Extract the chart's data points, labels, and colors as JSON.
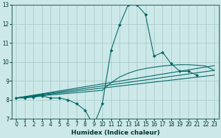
{
  "xlabel": "Humidex (Indice chaleur)",
  "background_color": "#cce8e8",
  "grid_color": "#aacccc",
  "line_color": "#006666",
  "xlim": [
    -0.5,
    23.5
  ],
  "ylim": [
    7,
    13
  ],
  "yticks": [
    7,
    8,
    9,
    10,
    11,
    12,
    13
  ],
  "xticks": [
    0,
    1,
    2,
    3,
    4,
    5,
    6,
    7,
    8,
    9,
    10,
    11,
    12,
    13,
    14,
    15,
    16,
    17,
    18,
    19,
    20,
    21,
    22,
    23
  ],
  "curves": [
    {
      "x": [
        0,
        1,
        2,
        3,
        4,
        5,
        6,
        7,
        8,
        9,
        10,
        11,
        12,
        13,
        14,
        15,
        16,
        17,
        18,
        19,
        20,
        21
      ],
      "y": [
        8.1,
        8.1,
        8.15,
        8.2,
        8.1,
        8.1,
        8.0,
        7.8,
        7.45,
        6.65,
        7.8,
        10.6,
        11.95,
        13.0,
        13.0,
        12.5,
        10.3,
        10.5,
        9.9,
        9.5,
        9.5,
        9.3
      ],
      "marker": true
    },
    {
      "x": [
        0,
        23
      ],
      "y": [
        8.1,
        9.3
      ],
      "marker": false
    },
    {
      "x": [
        0,
        23
      ],
      "y": [
        8.1,
        9.55
      ],
      "marker": false
    },
    {
      "x": [
        0,
        23
      ],
      "y": [
        8.1,
        9.8
      ],
      "marker": false
    },
    {
      "x": [
        0,
        10,
        11,
        12,
        13,
        14,
        15,
        16,
        17,
        18,
        19,
        20,
        21,
        22,
        23
      ],
      "y": [
        8.1,
        8.5,
        8.9,
        9.2,
        9.4,
        9.55,
        9.65,
        9.72,
        9.78,
        9.82,
        9.85,
        9.85,
        9.82,
        9.78,
        9.55
      ],
      "marker": false
    }
  ]
}
